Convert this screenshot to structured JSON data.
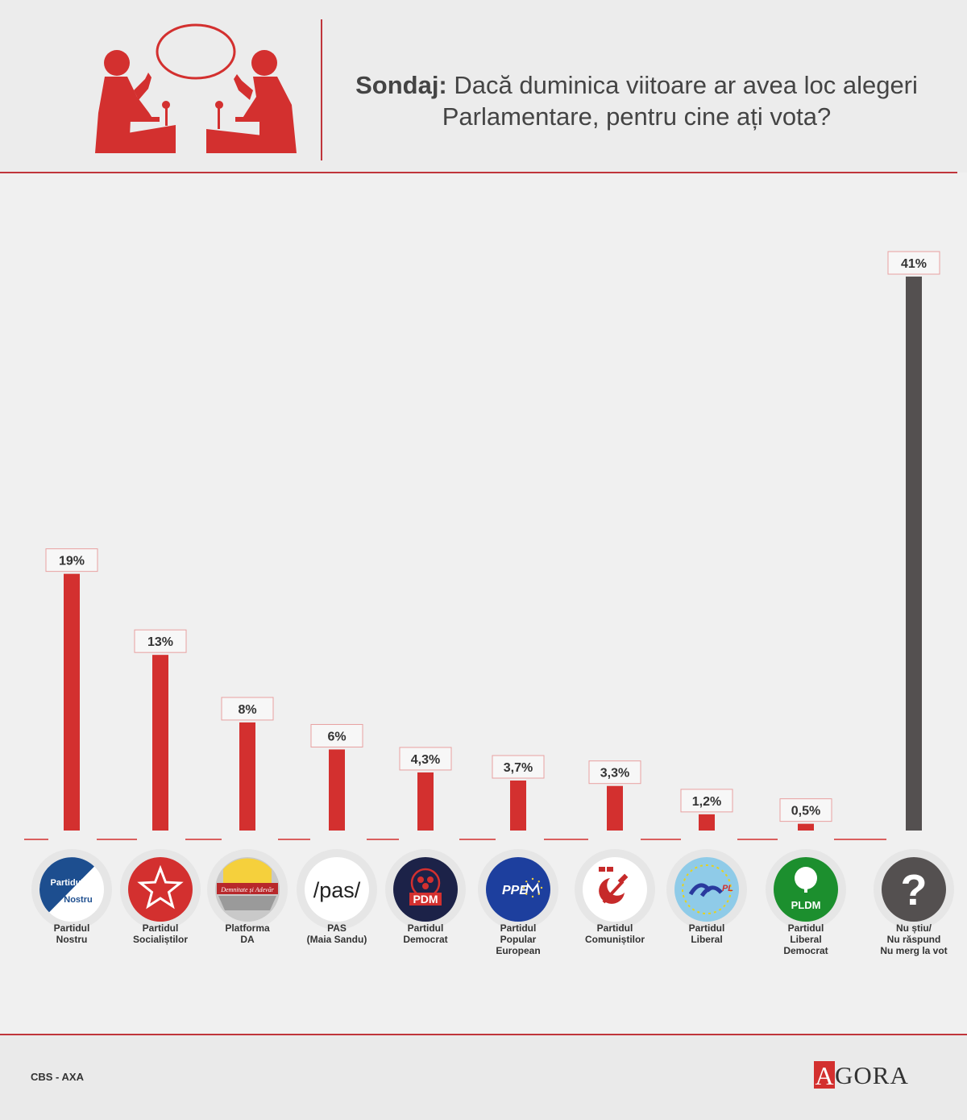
{
  "header": {
    "title_lead": "Sondaj:",
    "title_rest": " Dacă duminica viitoare ar avea loc alegeri Parlamentare, pentru cine ați vota?"
  },
  "colors": {
    "accent": "#d3302f",
    "neutral_bar": "#545050",
    "rule": "#c0353b"
  },
  "chart_data": {
    "type": "bar",
    "categories": [
      "Partidul Nostru",
      "Partidul Socialiștilor",
      "Platforma DA",
      "PAS (Maia Sandu)",
      "Partidul Democrat",
      "Partidul Popular European",
      "Partidul Comuniștilor",
      "Partidul Liberal",
      "Partidul Liberal Democrat",
      "Nu știu/ Nu răspund Nu merg la vot"
    ],
    "values": [
      19,
      13,
      8,
      6,
      4.3,
      3.7,
      3.3,
      1.2,
      0.5,
      41
    ],
    "data_labels": [
      "19%",
      "13%",
      "8%",
      "6%",
      "4,3%",
      "3,7%",
      "3,3%",
      "1,2%",
      "0,5%",
      "41%"
    ],
    "category_label_lines": [
      [
        "Partidul",
        "Nostru"
      ],
      [
        "Partidul",
        "Socialiștilor"
      ],
      [
        "Platforma",
        "DA"
      ],
      [
        "PAS",
        "(Maia Sandu)"
      ],
      [
        "Partidul",
        "Democrat"
      ],
      [
        "Partidul",
        "Popular",
        "European"
      ],
      [
        "Partidul",
        "Comuniștilor"
      ],
      [
        "Partidul",
        "Liberal"
      ],
      [
        "Partidul",
        "Liberal",
        "Democrat"
      ],
      [
        "Nu știu/",
        "Nu răspund",
        "Nu merg la vot"
      ]
    ],
    "bar_colors": [
      "#d3302f",
      "#d3302f",
      "#d3302f",
      "#d3302f",
      "#d3302f",
      "#d3302f",
      "#d3302f",
      "#d3302f",
      "#d3302f",
      "#545050"
    ],
    "logos": [
      {
        "icon": "partidul-nostru-logo",
        "text_top": "Partidul",
        "text_bottom": "Nostru"
      },
      {
        "icon": "ps-star-logo",
        "text": ""
      },
      {
        "icon": "platforma-da-logo",
        "text": "Demnitate și Adevăr"
      },
      {
        "icon": "pas-logo",
        "text": "/pas/"
      },
      {
        "icon": "pdm-logo",
        "text": "PDM"
      },
      {
        "icon": "ppem-logo",
        "text": "PPE"
      },
      {
        "icon": "pcrm-hammer-sickle-logo",
        "text": ""
      },
      {
        "icon": "pl-logo",
        "text": "PL"
      },
      {
        "icon": "pldm-logo",
        "text": "PLDM"
      },
      {
        "icon": "question-mark-icon",
        "text": "?"
      }
    ],
    "ylim": [
      0,
      41
    ],
    "grid": false,
    "legend": "none"
  },
  "footer": {
    "source": "CBS - AXA",
    "brand_mark": "A",
    "brand_rest": "GORA"
  }
}
